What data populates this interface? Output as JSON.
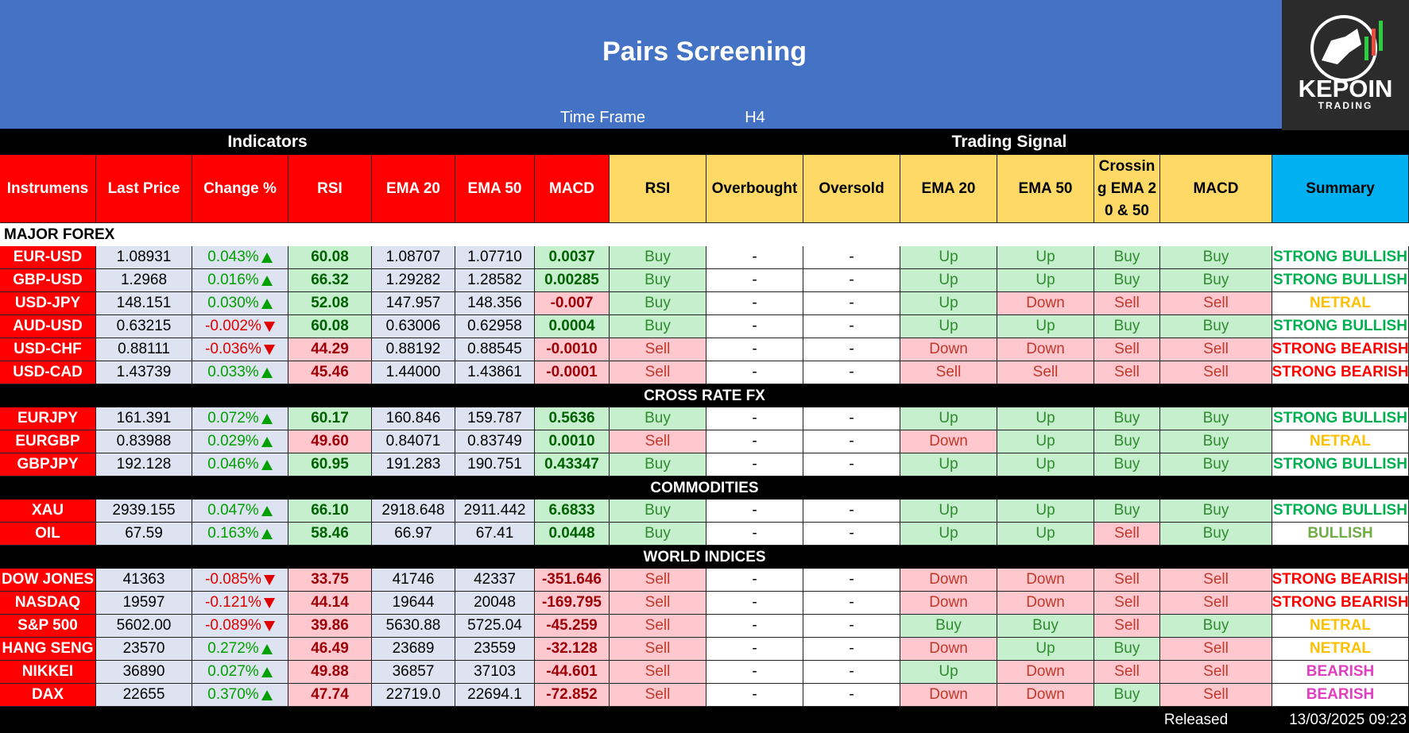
{
  "header": {
    "title": "Pairs Screening",
    "time_frame_label": "Time Frame",
    "time_frame_value": "H4"
  },
  "logo": {
    "name": "KEPOIN",
    "tagline": "TRADING"
  },
  "groups": [
    "Indicators",
    "Trading Signal"
  ],
  "columns": [
    "Instrumens",
    "Last Price",
    "Change %",
    "RSI",
    "EMA 20",
    "EMA 50",
    "MACD",
    "RSI",
    "Overbought",
    "Oversold",
    "EMA 20",
    "EMA 50",
    "Crossing EMA 20 & 50",
    "MACD",
    "Summary"
  ],
  "sections": [
    {
      "title": "MAJOR FOREX",
      "rows": [
        [
          "EUR-USD",
          "1.08931",
          "0.043%",
          "60.08",
          "1.08707",
          "1.07710",
          "0.0037",
          "Buy",
          "-",
          "-",
          "Up",
          "Up",
          "Buy",
          "Buy",
          "STRONG BULLISH"
        ],
        [
          "GBP-USD",
          "1.2968",
          "0.016%",
          "66.32",
          "1.29282",
          "1.28582",
          "0.00285",
          "Buy",
          "-",
          "-",
          "Up",
          "Up",
          "Buy",
          "Buy",
          "STRONG BULLISH"
        ],
        [
          "USD-JPY",
          "148.151",
          "0.030%",
          "52.08",
          "147.957",
          "148.356",
          "-0.007",
          "Buy",
          "-",
          "-",
          "Up",
          "Down",
          "Sell",
          "Sell",
          "NETRAL"
        ],
        [
          "AUD-USD",
          "0.63215",
          "-0.002%",
          "60.08",
          "0.63006",
          "0.62958",
          "0.0004",
          "Buy",
          "-",
          "-",
          "Up",
          "Up",
          "Buy",
          "Buy",
          "STRONG BULLISH"
        ],
        [
          "USD-CHF",
          "0.88111",
          "-0.036%",
          "44.29",
          "0.88192",
          "0.88545",
          "-0.0010",
          "Sell",
          "-",
          "-",
          "Down",
          "Down",
          "Sell",
          "Sell",
          "STRONG BEARISH"
        ],
        [
          "USD-CAD",
          "1.43739",
          "0.033%",
          "45.46",
          "1.44000",
          "1.43861",
          "-0.0001",
          "Sell",
          "-",
          "-",
          "Sell",
          "Sell",
          "Sell",
          "Sell",
          "STRONG BEARISH"
        ]
      ]
    },
    {
      "title": "CROSS RATE FX",
      "rows": [
        [
          "EURJPY",
          "161.391",
          "0.072%",
          "60.17",
          "160.846",
          "159.787",
          "0.5636",
          "Buy",
          "-",
          "-",
          "Up",
          "Up",
          "Buy",
          "Buy",
          "STRONG BULLISH"
        ],
        [
          "EURGBP",
          "0.83988",
          "0.029%",
          "49.60",
          "0.84071",
          "0.83749",
          "0.0010",
          "Sell",
          "-",
          "-",
          "Down",
          "Up",
          "Buy",
          "Buy",
          "NETRAL"
        ],
        [
          "GBPJPY",
          "192.128",
          "0.046%",
          "60.95",
          "191.283",
          "190.751",
          "0.43347",
          "Buy",
          "-",
          "-",
          "Up",
          "Up",
          "Buy",
          "Buy",
          "STRONG BULLISH"
        ]
      ]
    },
    {
      "title": "COMMODITIES",
      "rows": [
        [
          "XAU",
          "2939.155",
          "0.047%",
          "66.10",
          "2918.648",
          "2911.442",
          "6.6833",
          "Buy",
          "-",
          "-",
          "Up",
          "Up",
          "Buy",
          "Buy",
          "STRONG BULLISH"
        ],
        [
          "OIL",
          "67.59",
          "0.163%",
          "58.46",
          "66.97",
          "67.41",
          "0.0448",
          "Buy",
          "-",
          "-",
          "Up",
          "Up",
          "Sell",
          "Buy",
          "BULLISH"
        ]
      ]
    },
    {
      "title": "WORLD INDICES",
      "rows": [
        [
          "DOW JONES",
          "41363",
          "-0.085%",
          "33.75",
          "41746",
          "42337",
          "-351.646",
          "Sell",
          "-",
          "-",
          "Down",
          "Down",
          "Sell",
          "Sell",
          "STRONG BEARISH"
        ],
        [
          "NASDAQ",
          "19597",
          "-0.121%",
          "44.14",
          "19644",
          "20048",
          "-169.795",
          "Sell",
          "-",
          "-",
          "Down",
          "Down",
          "Sell",
          "Sell",
          "STRONG BEARISH"
        ],
        [
          "S&P 500",
          "5602.00",
          "-0.089%",
          "39.86",
          "5630.88",
          "5725.04",
          "-45.259",
          "Sell",
          "-",
          "-",
          "Buy",
          "Buy",
          "Sell",
          "Buy",
          "NETRAL"
        ],
        [
          "HANG SENG",
          "23570",
          "0.272%",
          "46.49",
          "23689",
          "23559",
          "-32.128",
          "Sell",
          "-",
          "-",
          "Down",
          "Up",
          "Buy",
          "Sell",
          "NETRAL"
        ],
        [
          "NIKKEI",
          "36890",
          "0.027%",
          "49.88",
          "36857",
          "37103",
          "-44.601",
          "Sell",
          "-",
          "-",
          "Up",
          "Down",
          "Sell",
          "Sell",
          "BEARISH"
        ],
        [
          "DAX",
          "22655",
          "0.370%",
          "47.74",
          "22719.0",
          "22694.1",
          "-72.852",
          "Sell",
          "-",
          "-",
          "Down",
          "Down",
          "Buy",
          "Sell",
          "BEARISH"
        ]
      ]
    }
  ],
  "footer": {
    "label": "Released",
    "datetime": "13/03/2025 09:23"
  },
  "styles": {
    "signal_colors": {
      "Buy": [
        "#c6efce",
        "#2e8b2e"
      ],
      "Up": [
        "#c6efce",
        "#2e8b2e"
      ],
      "Sell": [
        "#ffc7ce",
        "#c0392b"
      ],
      "Down": [
        "#ffc7ce",
        "#c0392b"
      ]
    },
    "summary_colors": {
      "STRONG BULLISH": "#00b050",
      "BULLISH": "#70ad47",
      "NETRAL": "#ffc000",
      "STRONG BEARISH": "#ff0000",
      "BEARISH": "#e040c0"
    }
  }
}
